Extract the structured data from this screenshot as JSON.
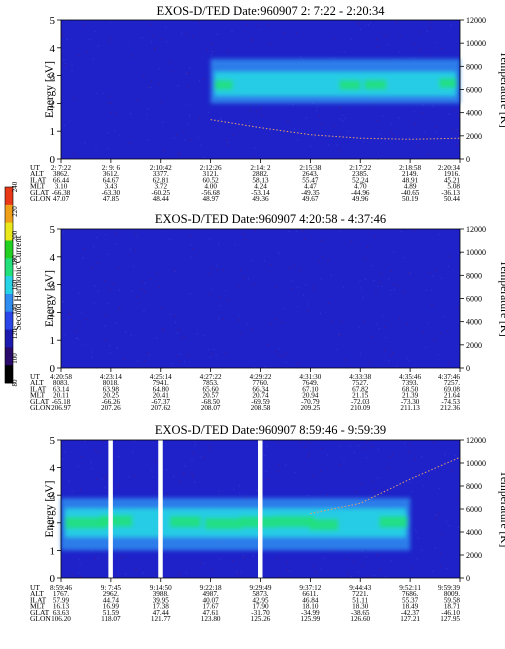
{
  "colorbar": {
    "label": "Second Harmonic Current",
    "ticks": [
      "80",
      "100",
      "120",
      "140",
      "160",
      "180",
      "200",
      "220",
      "240"
    ],
    "colors": [
      "#000000",
      "#2a0a6a",
      "#1d1ab0",
      "#2a46e8",
      "#2f8cf0",
      "#26d4e6",
      "#22e07a",
      "#22d022",
      "#e8e81a",
      "#f0a018",
      "#e83818"
    ]
  },
  "panels": [
    {
      "title": "EXOS-D/TED   Date:960907  2: 7:22 - 2:20:34",
      "ylabel_left": "Energy [eV]",
      "ylabel_right": "Temperature [K]",
      "y_ticks": [
        "0",
        "1",
        "2",
        "3",
        "4",
        "5"
      ],
      "t_ticks": [
        "0",
        "2000",
        "4000",
        "6000",
        "8000",
        "10000",
        "12000"
      ],
      "row_labels": [
        "UT",
        "ALT",
        "ILAT",
        "MLT",
        "GLAT",
        "GLON"
      ],
      "columns": [
        [
          "2: 7:22",
          "3862.",
          "66.44",
          "3.10",
          "-66.38",
          "47.07"
        ],
        [
          "2: 9: 6",
          "3612.",
          "64.67",
          "3.43",
          "-63.30",
          "47.85"
        ],
        [
          "2:10:42",
          "3377.",
          "62.81",
          "3.72",
          "-60.25",
          "48.44"
        ],
        [
          "2:12:26",
          "3121.",
          "60.52",
          "4.00",
          "-56.68",
          "48.97"
        ],
        [
          "2:14: 2",
          "2882.",
          "58.13",
          "4.24",
          "-53.14",
          "49.36"
        ],
        [
          "2:15:38",
          "2643.",
          "55.47",
          "4.47",
          "-49.35",
          "49.67"
        ],
        [
          "2:17:22",
          "2385.",
          "52.24",
          "4.70",
          "-44.96",
          "49.96"
        ],
        [
          "2:18:58",
          "2149.",
          "48.91",
          "4.89",
          "-40.65",
          "50.19"
        ],
        [
          "2:20:34",
          "1916.",
          "45.21",
          "5.08",
          "-36.13",
          "50.44"
        ]
      ]
    },
    {
      "title": "EXOS-D/TED   Date:960907  4:20:58 - 4:37:46",
      "ylabel_left": "Energy [eV]",
      "ylabel_right": "Temperature [K]",
      "y_ticks": [
        "0",
        "1",
        "2",
        "3",
        "4",
        "5"
      ],
      "t_ticks": [
        "0",
        "2000",
        "4000",
        "6000",
        "8000",
        "10000",
        "12000"
      ],
      "row_labels": [
        "UT",
        "ALT",
        "ILAT",
        "MLT",
        "GLAT",
        "GLON"
      ],
      "columns": [
        [
          "4:20:58",
          "8083.",
          "63.14",
          "20.11",
          "-65.18",
          "206.97"
        ],
        [
          "4:23:14",
          "8018.",
          "63.98",
          "20.25",
          "-66.26",
          "207.26"
        ],
        [
          "4:25:14",
          "7941.",
          "64.80",
          "20.41",
          "-67.37",
          "207.62"
        ],
        [
          "4:27:22",
          "7853.",
          "65.60",
          "20.57",
          "-68.50",
          "208.07"
        ],
        [
          "4:29:22",
          "7760.",
          "66.34",
          "20.74",
          "-69.59",
          "208.58"
        ],
        [
          "4:31:30",
          "7649.",
          "67.10",
          "20.94",
          "-70.79",
          "209.25"
        ],
        [
          "4:33:38",
          "7527.",
          "67.82",
          "21.15",
          "-72.03",
          "210.09"
        ],
        [
          "4:35:46",
          "7393.",
          "68.50",
          "21.39",
          "-73.30",
          "211.13"
        ],
        [
          "4:37:46",
          "7257.",
          "69.08",
          "21.64",
          "-74.53",
          "212.36"
        ]
      ]
    },
    {
      "title": "EXOS-D/TED   Date:960907  8:59:46 - 9:59:39",
      "ylabel_left": "Energy [eV]",
      "ylabel_right": "Temperature [K]",
      "y_ticks": [
        "0",
        "1",
        "2",
        "3",
        "4",
        "5"
      ],
      "t_ticks": [
        "0",
        "2000",
        "4000",
        "6000",
        "8000",
        "10000",
        "12000"
      ],
      "row_labels": [
        "UT",
        "ALT",
        "ILAT",
        "MLT",
        "GLAT",
        "GLON"
      ],
      "columns": [
        [
          "8:59:46",
          "1767.",
          "57.99",
          "16.13",
          "63.63",
          "106.20"
        ],
        [
          "9: 7:45",
          "2962.",
          "44.74",
          "16.99",
          "51.59",
          "118.07"
        ],
        [
          "9:14:50",
          "3988.",
          "39.95",
          "17.38",
          "47.44",
          "121.77"
        ],
        [
          "9:22:18",
          "4987.",
          "40.07",
          "17.67",
          "47.61",
          "123.80"
        ],
        [
          "9:29:49",
          "5873.",
          "42.95",
          "17.90",
          "-31.70",
          "125.26"
        ],
        [
          "9:37:12",
          "6611.",
          "46.84",
          "18.10",
          "-34.99",
          "125.99"
        ],
        [
          "9:44:43",
          "7221.",
          "51.11",
          "18.30",
          "-38.65",
          "126.60"
        ],
        [
          "9:52:11",
          "7686.",
          "55.37",
          "18.49",
          "-42.37",
          "127.21"
        ],
        [
          "9:59:39",
          "8009.",
          "59.58",
          "18.71",
          "-46.10",
          "127.95"
        ]
      ]
    }
  ],
  "chart_data": [
    {
      "type": "heatmap",
      "title": "EXOS-D/TED   Date:960907  2: 7:22 - 2:20:34",
      "xlabel": "UT",
      "ylabel": "Energy [eV]",
      "y2label": "Temperature [K]",
      "ylim": [
        0,
        5
      ],
      "y2lim": [
        0,
        12000
      ],
      "x": [
        "2: 7:22",
        "2: 9: 6",
        "2:10:42",
        "2:12:26",
        "2:14: 2",
        "2:15:38",
        "2:17:22",
        "2:18:58",
        "2:20:34"
      ],
      "colorbar_label": "Second Harmonic Current",
      "colorbar_range": [
        80,
        240
      ],
      "bands": [
        {
          "x_start": "2:12:26",
          "x_end": "2:20:34",
          "e_low": 2.0,
          "e_high": 3.6,
          "e_peak": 2.7,
          "level": 175
        }
      ],
      "temperature_trace": {
        "x": [
          "2:12:26",
          "2:14: 2",
          "2:15:38",
          "2:17:22",
          "2:18:58",
          "2:20:34"
        ],
        "y": [
          3400,
          2700,
          2100,
          1800,
          1700,
          1800
        ]
      }
    },
    {
      "type": "heatmap",
      "title": "EXOS-D/TED   Date:960907  4:20:58 - 4:37:46",
      "xlabel": "UT",
      "ylabel": "Energy [eV]",
      "y2label": "Temperature [K]",
      "ylim": [
        0,
        5
      ],
      "y2lim": [
        0,
        12000
      ],
      "x": [
        "4:20:58",
        "4:23:14",
        "4:25:14",
        "4:27:22",
        "4:29:22",
        "4:31:30",
        "4:33:38",
        "4:35:46",
        "4:37:46"
      ],
      "colorbar_label": "Second Harmonic Current",
      "colorbar_range": [
        80,
        240
      ],
      "bands": []
    },
    {
      "type": "heatmap",
      "title": "EXOS-D/TED   Date:960907  8:59:46 - 9:59:39",
      "xlabel": "UT",
      "ylabel": "Energy [eV]",
      "y2label": "Temperature [K]",
      "ylim": [
        0,
        5
      ],
      "y2lim": [
        0,
        12000
      ],
      "x": [
        "8:59:46",
        "9: 7:45",
        "9:14:50",
        "9:22:18",
        "9:29:49",
        "9:37:12",
        "9:44:43",
        "9:52:11",
        "9:59:39"
      ],
      "colorbar_label": "Second Harmonic Current",
      "colorbar_range": [
        80,
        240
      ],
      "data_gaps": [
        "9: 7:45",
        "9:14:50",
        "9:29:49"
      ],
      "bands": [
        {
          "x_start": "8:59:46",
          "x_end": "9:52:11",
          "e_low": 1.0,
          "e_high": 2.9,
          "e_peak": 2.0,
          "level": 180
        }
      ],
      "temperature_trace": {
        "x": [
          "9:37:12",
          "9:44:43",
          "9:52:11",
          "9:59:39"
        ],
        "y": [
          5600,
          6500,
          8600,
          10500
        ]
      }
    }
  ]
}
